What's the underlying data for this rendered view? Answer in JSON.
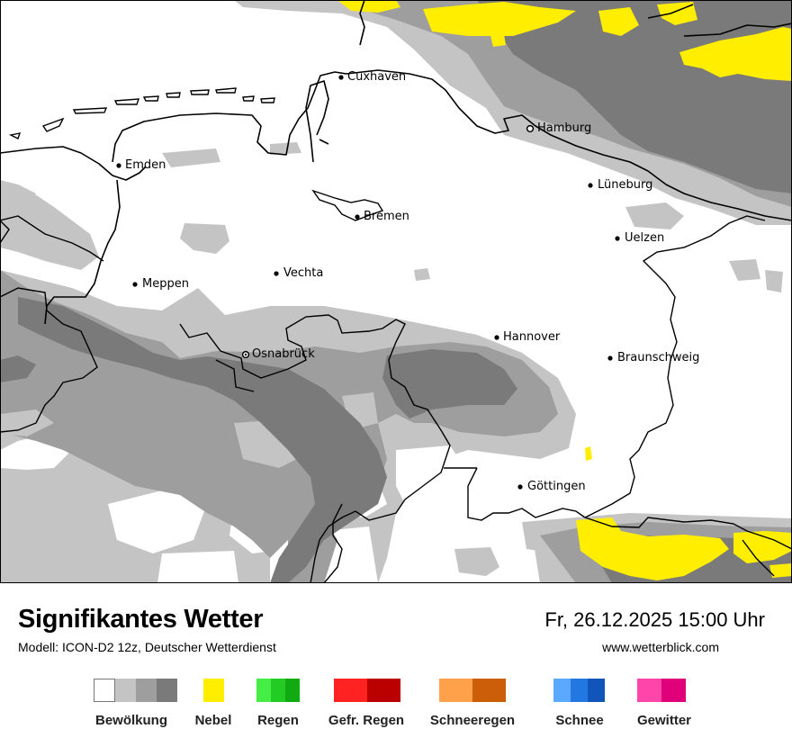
{
  "map": {
    "cities": [
      {
        "name": "Cuxhaven"
      },
      {
        "name": "Hamburg"
      },
      {
        "name": "Emden"
      },
      {
        "name": "Lüneburg"
      },
      {
        "name": "Bremen"
      },
      {
        "name": "Uelzen"
      },
      {
        "name": "Vechta"
      },
      {
        "name": "Meppen"
      },
      {
        "name": "Hannover"
      },
      {
        "name": "Osnabrück"
      },
      {
        "name": "Braunschweig"
      },
      {
        "name": "Göttingen"
      }
    ]
  },
  "footer": {
    "title": "Signifikantes Wetter",
    "subtitle": "Modell: ICON-D2 12z, Deutscher Wetterdienst",
    "datetime": "Fr, 26.12.2025 15:00 Uhr",
    "website": "www.wetterblick.com"
  },
  "legend": [
    {
      "label": "Bewölkung",
      "colors": [
        "#ffffff",
        "#c4c4c4",
        "#9e9e9e",
        "#7a7a7a"
      ]
    },
    {
      "label": "Nebel",
      "colors": [
        "#ffee00"
      ]
    },
    {
      "label": "Regen",
      "colors": [
        "#44ee44",
        "#22cc22",
        "#11aa11"
      ]
    },
    {
      "label": "Gefr. Regen",
      "colors": [
        "#ff2222",
        "#bb0000"
      ]
    },
    {
      "label": "Schneeregen",
      "colors": [
        "#ffa04a",
        "#cc5e0a"
      ]
    },
    {
      "label": "Schnee",
      "colors": [
        "#5aa8ff",
        "#2277e0",
        "#1155bb"
      ]
    },
    {
      "label": "Gewitter",
      "colors": [
        "#ff44aa",
        "#e0007a"
      ]
    }
  ],
  "colors": {
    "cloud_light": "#c4c4c4",
    "cloud_medium": "#9e9e9e",
    "cloud_dark": "#7a7a7a",
    "fog": "#ffee00"
  }
}
